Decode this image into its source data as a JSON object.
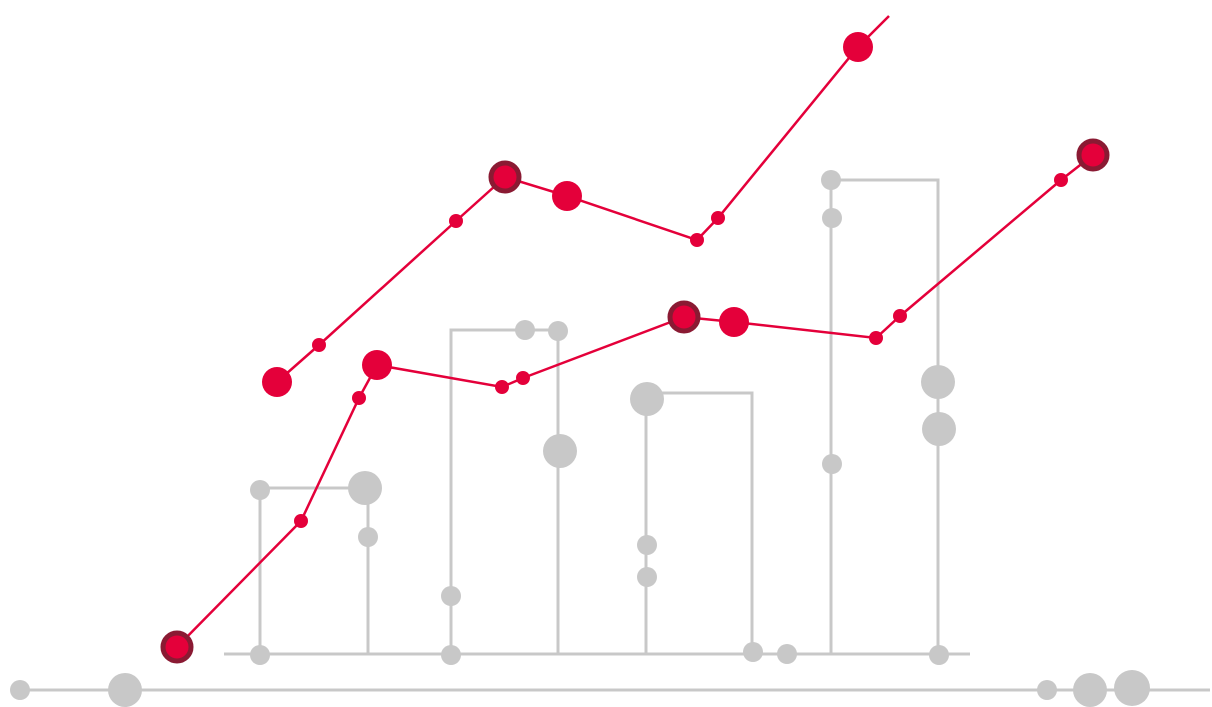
{
  "illustration": {
    "kind": "decorative growth chart illustration",
    "colors": {
      "accent": "#e4003a",
      "accent_ring": "#8a1a33",
      "grey": "#c8c8c8",
      "background": "#ffffff"
    },
    "icons": [
      "trend-line-icon",
      "bar-outline-icon",
      "dot-node-icon"
    ]
  }
}
